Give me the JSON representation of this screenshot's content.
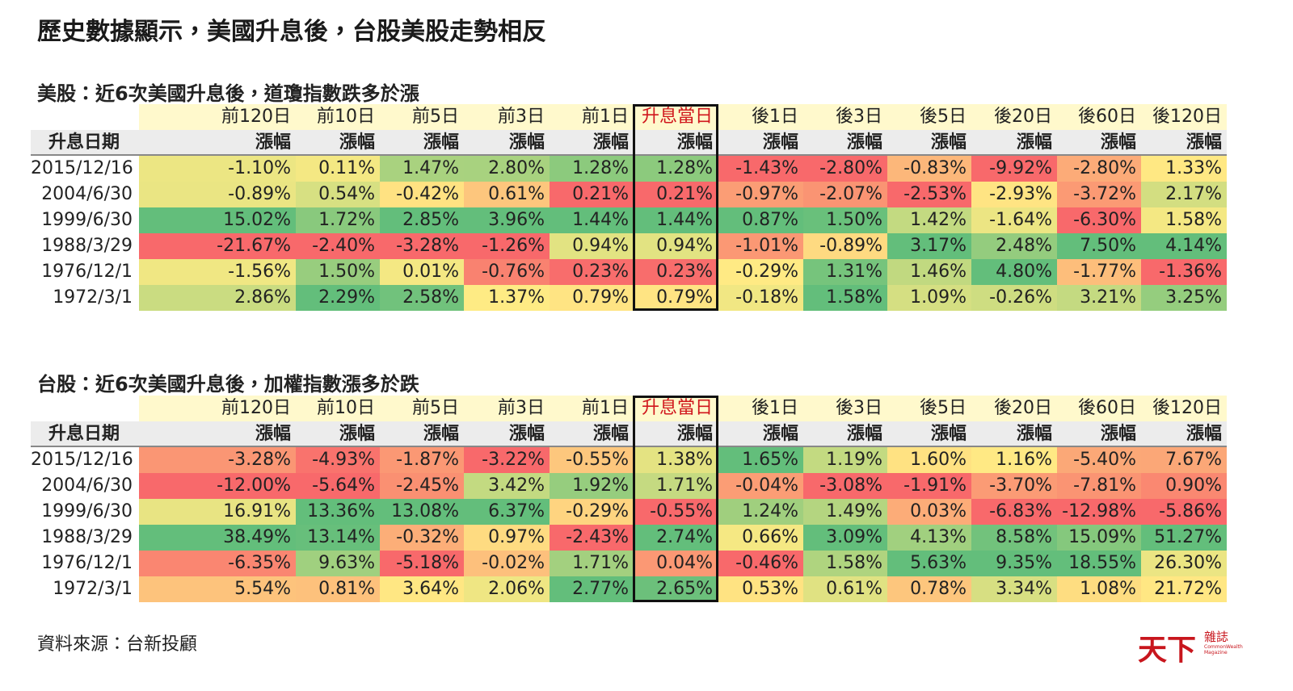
{
  "title": "歷史數據顯示，美國升息後，台股美股走勢相反",
  "tables": [
    {
      "heading": "美股：近6次美國升息後，道瓊指數跌多於漲",
      "columns": [
        "前120日",
        "前10日",
        "前5日",
        "前3日",
        "前1日",
        "升息當日",
        "後1日",
        "後3日",
        "後5日",
        "後20日",
        "後60日",
        "後120日"
      ],
      "row_header": "升息日期",
      "subheaders": [
        "漲幅",
        "漲幅",
        "漲幅",
        "漲幅",
        "漲幅",
        "漲幅",
        "漲幅",
        "漲幅",
        "漲幅",
        "漲幅",
        "漲幅",
        "漲幅"
      ],
      "rows": [
        {
          "date": "2015/12/16",
          "values": [
            "-1.10%",
            "0.11%",
            "1.47%",
            "2.80%",
            "1.28%",
            "1.28%",
            "-1.43%",
            "-2.80%",
            "-0.83%",
            "-9.92%",
            "-2.80%",
            "1.33%"
          ]
        },
        {
          "date": "2004/6/30",
          "values": [
            "-0.89%",
            "0.54%",
            "-0.42%",
            "0.61%",
            "0.21%",
            "0.21%",
            "-0.97%",
            "-2.07%",
            "-2.53%",
            "-2.93%",
            "-3.72%",
            "2.17%"
          ]
        },
        {
          "date": "1999/6/30",
          "values": [
            "15.02%",
            "1.72%",
            "2.85%",
            "3.96%",
            "1.44%",
            "1.44%",
            "0.87%",
            "1.50%",
            "1.42%",
            "-1.64%",
            "-6.30%",
            "1.58%"
          ]
        },
        {
          "date": "1988/3/29",
          "values": [
            "-21.67%",
            "-2.40%",
            "-3.28%",
            "-1.26%",
            "0.94%",
            "0.94%",
            "-1.01%",
            "-0.89%",
            "3.17%",
            "2.48%",
            "7.50%",
            "4.14%"
          ]
        },
        {
          "date": "1976/12/1",
          "values": [
            "-1.56%",
            "1.50%",
            "0.01%",
            "-0.76%",
            "0.23%",
            "0.23%",
            "-0.29%",
            "1.31%",
            "1.46%",
            "4.80%",
            "-1.77%",
            "-1.36%"
          ]
        },
        {
          "date": "1972/3/1",
          "values": [
            "2.86%",
            "2.29%",
            "2.58%",
            "1.37%",
            "0.79%",
            "0.79%",
            "-0.18%",
            "1.58%",
            "1.09%",
            "-0.26%",
            "3.21%",
            "3.25%"
          ]
        }
      ]
    },
    {
      "heading": "台股：近6次美國升息後，加權指數漲多於跌",
      "columns": [
        "前120日",
        "前10日",
        "前5日",
        "前3日",
        "前1日",
        "升息當日",
        "後1日",
        "後3日",
        "後5日",
        "後20日",
        "後60日",
        "後120日"
      ],
      "row_header": "升息日期",
      "subheaders": [
        "漲幅",
        "漲幅",
        "漲幅",
        "漲幅",
        "漲幅",
        "漲幅",
        "漲幅",
        "漲幅",
        "漲幅",
        "漲幅",
        "漲幅",
        "漲幅"
      ],
      "rows": [
        {
          "date": "2015/12/16",
          "values": [
            "-3.28%",
            "-4.93%",
            "-1.87%",
            "-3.22%",
            "-0.55%",
            "1.38%",
            "1.65%",
            "1.19%",
            "1.60%",
            "1.16%",
            "-5.40%",
            "7.67%"
          ]
        },
        {
          "date": "2004/6/30",
          "values": [
            "-12.00%",
            "-5.64%",
            "-2.45%",
            "3.42%",
            "1.92%",
            "1.71%",
            "-0.04%",
            "-3.08%",
            "-1.91%",
            "-3.70%",
            "-7.81%",
            "0.90%"
          ]
        },
        {
          "date": "1999/6/30",
          "values": [
            "16.91%",
            "13.36%",
            "13.08%",
            "6.37%",
            "-0.29%",
            "-0.55%",
            "1.24%",
            "1.49%",
            "0.03%",
            "-6.83%",
            "-12.98%",
            "-5.86%"
          ]
        },
        {
          "date": "1988/3/29",
          "values": [
            "38.49%",
            "13.14%",
            "-0.32%",
            "0.97%",
            "-2.43%",
            "2.74%",
            "0.66%",
            "3.09%",
            "4.13%",
            "8.58%",
            "15.09%",
            "51.27%"
          ]
        },
        {
          "date": "1976/12/1",
          "values": [
            "-6.35%",
            "9.63%",
            "-5.18%",
            "-0.02%",
            "1.71%",
            "0.04%",
            "-0.46%",
            "1.58%",
            "5.63%",
            "9.35%",
            "18.55%",
            "26.30%"
          ]
        },
        {
          "date": "1972/3/1",
          "values": [
            "5.54%",
            "0.81%",
            "3.64%",
            "2.06%",
            "2.77%",
            "2.65%",
            "0.53%",
            "0.61%",
            "0.78%",
            "3.34%",
            "1.08%",
            "21.72%"
          ]
        }
      ]
    }
  ],
  "source": "資料來源：台新投顧",
  "logo": {
    "name": "天下",
    "sub": "雜誌",
    "english": "CommonWealth Magazine"
  }
}
